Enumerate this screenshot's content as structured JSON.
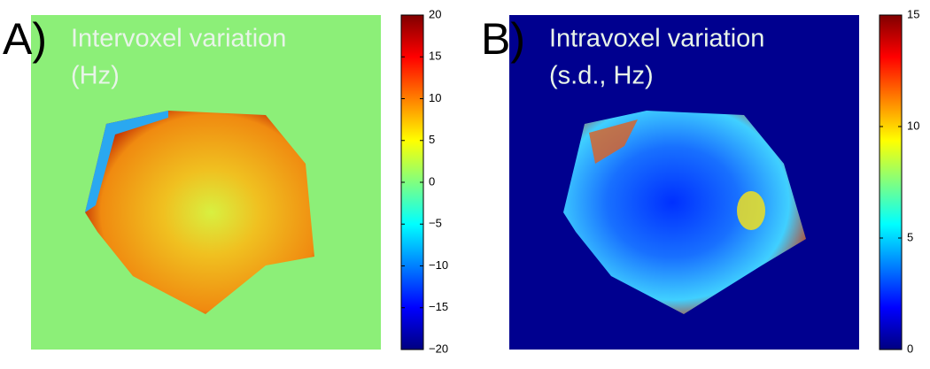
{
  "chart_data": [
    {
      "type": "heatmap",
      "panel_label": "A)",
      "title": [
        "Intervoxel variation",
        "(Hz)"
      ],
      "ylim": [
        -20,
        20
      ],
      "yticks": [
        {
          "value": -20,
          "label": "−20"
        },
        {
          "value": -15,
          "label": "−15"
        },
        {
          "value": -10,
          "label": "−10"
        },
        {
          "value": -5,
          "label": "−5"
        },
        0,
        5,
        10,
        15,
        20
      ]
    },
    {
      "type": "heatmap",
      "panel_label": "B)",
      "title": [
        "Intravoxel variation",
        "(s.d., Hz)"
      ],
      "ylim": [
        0,
        15
      ],
      "yticks": [
        0,
        5,
        10,
        15
      ]
    }
  ]
}
